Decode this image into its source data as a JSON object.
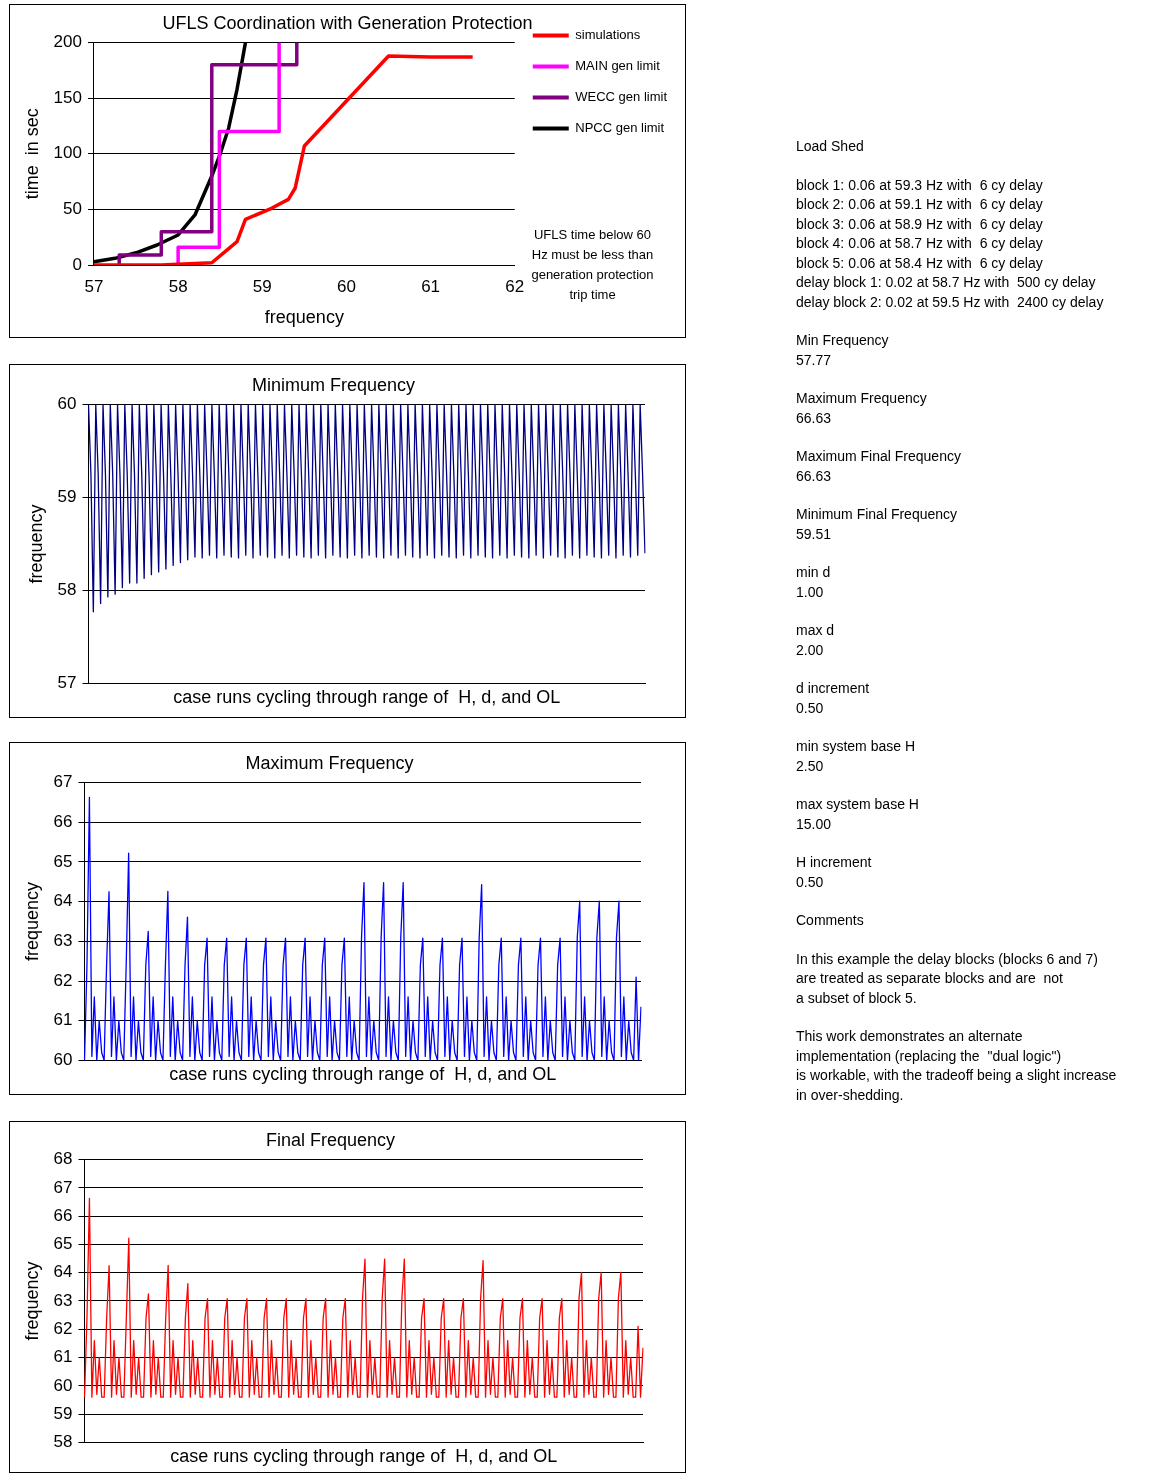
{
  "chart_data": [
    {
      "type": "line",
      "title": "UFLS Coordination with Generation Protection",
      "xlabel": "frequency",
      "ylabel": "time  in sec",
      "xlim": [
        57,
        62
      ],
      "xticks": [
        57,
        58,
        59,
        60,
        61,
        62
      ],
      "ylim": [
        0,
        200
      ],
      "yticks": [
        0,
        50,
        100,
        150,
        200
      ],
      "grid": "y",
      "legend": "right",
      "marker": "none",
      "line_style": "solid",
      "annotations": [
        "UFLS time below 60 Hz must be less than  generation protection trip time"
      ],
      "series": [
        {
          "name": "simulations",
          "color": "#ff0000",
          "x": [
            57,
            57.8,
            58.4,
            58.7,
            58.8,
            59.11,
            59.31,
            59.39,
            59.5,
            60.5,
            61,
            61.5
          ],
          "values": [
            0,
            0,
            2,
            21,
            41,
            51,
            59,
            69,
            107,
            188,
            187,
            187
          ]
        },
        {
          "name": "MAIN gen limit",
          "color": "#ff00ff",
          "x": [
            58,
            58,
            58.49,
            58.49,
            59.2,
            59.2
          ],
          "values": [
            0,
            16,
            16,
            120,
            120,
            200
          ]
        },
        {
          "name": "WECC gen limit",
          "color": "#800080",
          "x": [
            57.3,
            57.3,
            57.8,
            57.8,
            58.4,
            58.4,
            59.41,
            59.41
          ],
          "values": [
            0,
            9,
            9,
            30,
            30,
            180,
            180,
            200
          ]
        },
        {
          "name": "NPCC gen limit",
          "color": "#000000",
          "x": [
            57,
            57.25,
            57.5,
            57.75,
            58,
            58.2,
            58.4,
            58.5,
            58.6,
            58.7,
            58.8
          ],
          "values": [
            3,
            6,
            11,
            18,
            27,
            45,
            80,
            100,
            123,
            158,
            200
          ]
        }
      ]
    },
    {
      "type": "line",
      "title": "Minimum Frequency",
      "xlabel": "case runs cycling through range of  H, d, and OL",
      "ylabel": "frequency",
      "ylim": [
        57,
        60
      ],
      "yticks": [
        57,
        58,
        59,
        60
      ],
      "grid": "y",
      "tick_labels": "y",
      "marker": "none",
      "categories": [
        null,
        null,
        null,
        null,
        null,
        null,
        null,
        null,
        null,
        null,
        null,
        null,
        null,
        null,
        null,
        null,
        null,
        null,
        null,
        null,
        null,
        null,
        null,
        null,
        null,
        null,
        null,
        null,
        null,
        null,
        null,
        null,
        null,
        null,
        null,
        null,
        null,
        null,
        null,
        null,
        null,
        null,
        null,
        null,
        null,
        null,
        null,
        null,
        null,
        null,
        null,
        null,
        null,
        null,
        null,
        null,
        null,
        null,
        null,
        null,
        null,
        null,
        null,
        null,
        null,
        null,
        null,
        null,
        null,
        null,
        null,
        null,
        null,
        null,
        null,
        null,
        null,
        null,
        null,
        null,
        null,
        null,
        null,
        null,
        null,
        null,
        null,
        null,
        null,
        null,
        null,
        null,
        null,
        null,
        null,
        null,
        null,
        null,
        null,
        null,
        null,
        null,
        null,
        null,
        null,
        null,
        null,
        null,
        null,
        null,
        null,
        null,
        null,
        null,
        null,
        null,
        null,
        null,
        null,
        null,
        null,
        null,
        null,
        null,
        null,
        null,
        null,
        null,
        null,
        null,
        null,
        null,
        null,
        null,
        null,
        null,
        null,
        null,
        null,
        null,
        null,
        null,
        null,
        null,
        null,
        null,
        null,
        null,
        null,
        null,
        null,
        null,
        null,
        null,
        null,
        null,
        null,
        null,
        null,
        null,
        null,
        null,
        null,
        null,
        null,
        null,
        null,
        null,
        null,
        null,
        null,
        null,
        null,
        null,
        null,
        null,
        null,
        null,
        null,
        null,
        null,
        null,
        null,
        null,
        null,
        null,
        null,
        null,
        null,
        null,
        null,
        null,
        null,
        null,
        null,
        null,
        null,
        null,
        null,
        null,
        null,
        null,
        null,
        null,
        null,
        null,
        null,
        null,
        null,
        null,
        null,
        null,
        null,
        null,
        null,
        null,
        null,
        null,
        null,
        null,
        null,
        null,
        null,
        null,
        null,
        null,
        null,
        null,
        null,
        null,
        null
      ],
      "series": [
        {
          "color": "#000080",
          "values": [
            60,
            59.25,
            57.77,
            60,
            59.25,
            57.86,
            60,
            59.25,
            57.93,
            60,
            59.25,
            57.96,
            60,
            59.25,
            58.03,
            60,
            59.25,
            58.08,
            60,
            59.25,
            58.08,
            60,
            59.25,
            58.13,
            60,
            59.25,
            58.17,
            60,
            59.25,
            58.2,
            60,
            59.25,
            58.23,
            60,
            59.25,
            58.27,
            60,
            59.25,
            58.3,
            60,
            59.25,
            58.33,
            60,
            59.25,
            58.36,
            60,
            59.25,
            58.35,
            60,
            59.25,
            58.38,
            60,
            59.25,
            58.35,
            60,
            59.25,
            58.38,
            60,
            59.25,
            58.36,
            60,
            59.25,
            58.35,
            60,
            59.25,
            58.38,
            60,
            59.25,
            58.35,
            60,
            59.25,
            58.38,
            60,
            59.25,
            58.36,
            60,
            59.25,
            58.35,
            60,
            59.25,
            58.38,
            60,
            59.25,
            58.35,
            60,
            59.25,
            58.38,
            60,
            59.25,
            58.36,
            60,
            59.25,
            58.35,
            60,
            59.25,
            58.38,
            60,
            59.25,
            58.35,
            60,
            59.25,
            58.38,
            60,
            59.25,
            58.36,
            60,
            59.25,
            58.35,
            60,
            59.25,
            58.38,
            60,
            59.25,
            58.35,
            60,
            59.25,
            58.38,
            60,
            59.25,
            58.36,
            60,
            59.25,
            58.35,
            60,
            59.25,
            58.38,
            60,
            59.25,
            58.35,
            60,
            59.25,
            58.38,
            60,
            59.25,
            58.36,
            60,
            59.25,
            58.35,
            60,
            59.25,
            58.38,
            60,
            59.25,
            58.35,
            60,
            59.25,
            58.38,
            60,
            59.25,
            58.36,
            60,
            59.25,
            58.35,
            60,
            59.25,
            58.38,
            60,
            59.25,
            58.35,
            60,
            59.25,
            58.38,
            60,
            59.25,
            58.36,
            60,
            59.25,
            58.35,
            60,
            59.25,
            58.38,
            60,
            59.25,
            58.35,
            60,
            59.25,
            58.38,
            60,
            59.25,
            58.36,
            60,
            59.25,
            58.35,
            60,
            59.25,
            58.38,
            60,
            59.25,
            58.35,
            60,
            59.25,
            58.38,
            60,
            59.25,
            58.36,
            60,
            59.25,
            58.35,
            60,
            59.25,
            58.38,
            60,
            59.25,
            58.35,
            60,
            59.25,
            58.38,
            60,
            59.25,
            58.36,
            60,
            59.25,
            58.35,
            60,
            59.25,
            58.38,
            60,
            59.25,
            58.35,
            60,
            59.25,
            58.38,
            60,
            59.25,
            58.36,
            60,
            59.25,
            58.38,
            60,
            59.25,
            58.4
          ]
        }
      ]
    },
    {
      "type": "line",
      "title": "Maximum Frequency",
      "xlabel": "case runs cycling through range of  H, d, and OL",
      "ylabel": "frequency",
      "ylim": [
        60,
        67
      ],
      "yticks": [
        60,
        61,
        62,
        63,
        64,
        65,
        66,
        67
      ],
      "grid": "y",
      "tick_labels": "y",
      "marker": "none",
      "categories": [
        null,
        null,
        null,
        null,
        null,
        null,
        null,
        null,
        null,
        null,
        null,
        null,
        null,
        null,
        null,
        null,
        null,
        null,
        null,
        null,
        null,
        null,
        null,
        null,
        null,
        null,
        null,
        null,
        null,
        null,
        null,
        null,
        null,
        null,
        null,
        null,
        null,
        null,
        null,
        null,
        null,
        null,
        null,
        null,
        null,
        null,
        null,
        null,
        null,
        null,
        null,
        null,
        null,
        null,
        null,
        null,
        null,
        null,
        null,
        null,
        null,
        null,
        null,
        null,
        null,
        null,
        null,
        null,
        null,
        null,
        null,
        null,
        null,
        null,
        null,
        null,
        null,
        null,
        null,
        null,
        null,
        null,
        null,
        null,
        null,
        null,
        null,
        null,
        null,
        null,
        null,
        null,
        null,
        null,
        null,
        null,
        null,
        null,
        null,
        null,
        null,
        null,
        null,
        null,
        null,
        null,
        null,
        null,
        null,
        null,
        null,
        null,
        null,
        null,
        null,
        null,
        null,
        null,
        null,
        null,
        null,
        null,
        null,
        null,
        null,
        null,
        null,
        null,
        null,
        null,
        null,
        null,
        null,
        null,
        null,
        null,
        null,
        null,
        null,
        null,
        null,
        null,
        null,
        null,
        null,
        null,
        null,
        null,
        null,
        null,
        null,
        null,
        null,
        null,
        null,
        null,
        null,
        null,
        null,
        null,
        null,
        null,
        null,
        null,
        null,
        null,
        null,
        null,
        null,
        null,
        null,
        null,
        null,
        null,
        null,
        null,
        null,
        null,
        null,
        null,
        null,
        null,
        null,
        null,
        null,
        null,
        null,
        null,
        null,
        null,
        null,
        null,
        null,
        null,
        null,
        null,
        null,
        null,
        null,
        null,
        null,
        null,
        null,
        null,
        null,
        null,
        null,
        null,
        null,
        null,
        null,
        null,
        null,
        null,
        null,
        null,
        null,
        null,
        null,
        null,
        null,
        null,
        null,
        null,
        null,
        null,
        null,
        null
      ],
      "series": [
        {
          "color": "#0000ff",
          "values": [
            60,
            62.4,
            66.63,
            60.1,
            61.6,
            60,
            61,
            60.2,
            60,
            62.4,
            64.25,
            60.1,
            61.6,
            60,
            61,
            60.2,
            60,
            62.4,
            65.22,
            60.1,
            61.6,
            60,
            61,
            60.2,
            60,
            62.4,
            63.25,
            60.1,
            61.6,
            60,
            61,
            60.2,
            60,
            62.4,
            64.26,
            60.1,
            61.6,
            60,
            61,
            60.2,
            60,
            62.4,
            63.61,
            60.1,
            61.6,
            60,
            61,
            60.2,
            60,
            62.4,
            63.08,
            60.1,
            61.6,
            60,
            61,
            60.2,
            60,
            62.4,
            63.08,
            60.1,
            61.6,
            60,
            61,
            60.2,
            60,
            62.4,
            63.08,
            60.1,
            61.6,
            60,
            61,
            60.2,
            60,
            62.4,
            63.08,
            60.1,
            61.6,
            60,
            61,
            60.2,
            60,
            62.4,
            63.08,
            60.1,
            61.6,
            60,
            61,
            60.2,
            60,
            62.4,
            63.08,
            60.1,
            61.6,
            60,
            61,
            60.2,
            60,
            62.4,
            63.08,
            60.1,
            61.6,
            60,
            61,
            60.2,
            60,
            62.4,
            63.08,
            60.1,
            61.6,
            60,
            61,
            60.2,
            60,
            63.1,
            64.48,
            60.1,
            61.6,
            60,
            61,
            60.2,
            60,
            63.1,
            64.48,
            60.1,
            61.6,
            60,
            61,
            60.2,
            60,
            63.1,
            64.48,
            60.1,
            61.6,
            60,
            61,
            60.2,
            60,
            62.4,
            63.08,
            60.1,
            61.6,
            60,
            61,
            60.2,
            60,
            62.4,
            63.08,
            60.1,
            61.6,
            60,
            61,
            60.2,
            60,
            62.4,
            63.08,
            60.1,
            61.6,
            60,
            61,
            60.2,
            60,
            63.1,
            64.43,
            60.1,
            61.6,
            60,
            61,
            60.2,
            60,
            62.4,
            63.08,
            60.1,
            61.6,
            60,
            61,
            60.2,
            60,
            62.4,
            63.08,
            60.1,
            61.6,
            60,
            61,
            60.2,
            60,
            62.4,
            63.08,
            60.1,
            61.6,
            60,
            61,
            60.2,
            60,
            62.4,
            63.08,
            60.1,
            61.6,
            60,
            61,
            60.2,
            60,
            63.1,
            64.01,
            60.1,
            61.6,
            60,
            61,
            60.2,
            60,
            63.1,
            64.01,
            60.1,
            61.6,
            60,
            61,
            60.2,
            60,
            63.1,
            64.01,
            60.1,
            61.6,
            60,
            61,
            60.2,
            60,
            62.1,
            60,
            61.35
          ]
        }
      ]
    },
    {
      "type": "line",
      "title": "Final Frequency",
      "xlabel": "case runs cycling through range of  H, d, and OL",
      "ylabel": "frequency",
      "ylim": [
        58,
        68
      ],
      "yticks": [
        58,
        59,
        60,
        61,
        62,
        63,
        64,
        65,
        66,
        67,
        68
      ],
      "grid": "y",
      "tick_labels": "y",
      "marker": "none",
      "categories": [
        null,
        null,
        null,
        null,
        null,
        null,
        null,
        null,
        null,
        null,
        null,
        null,
        null,
        null,
        null,
        null,
        null,
        null,
        null,
        null,
        null,
        null,
        null,
        null,
        null,
        null,
        null,
        null,
        null,
        null,
        null,
        null,
        null,
        null,
        null,
        null,
        null,
        null,
        null,
        null,
        null,
        null,
        null,
        null,
        null,
        null,
        null,
        null,
        null,
        null,
        null,
        null,
        null,
        null,
        null,
        null,
        null,
        null,
        null,
        null,
        null,
        null,
        null,
        null,
        null,
        null,
        null,
        null,
        null,
        null,
        null,
        null,
        null,
        null,
        null,
        null,
        null,
        null,
        null,
        null,
        null,
        null,
        null,
        null,
        null,
        null,
        null,
        null,
        null,
        null,
        null,
        null,
        null,
        null,
        null,
        null,
        null,
        null,
        null,
        null,
        null,
        null,
        null,
        null,
        null,
        null,
        null,
        null,
        null,
        null,
        null,
        null,
        null,
        null,
        null,
        null,
        null,
        null,
        null,
        null,
        null,
        null,
        null,
        null,
        null,
        null,
        null,
        null,
        null,
        null,
        null,
        null,
        null,
        null,
        null,
        null,
        null,
        null,
        null,
        null,
        null,
        null,
        null,
        null,
        null,
        null,
        null,
        null,
        null,
        null,
        null,
        null,
        null,
        null,
        null,
        null,
        null,
        null,
        null,
        null,
        null,
        null,
        null,
        null,
        null,
        null,
        null,
        null,
        null,
        null,
        null,
        null,
        null,
        null,
        null,
        null,
        null,
        null,
        null,
        null,
        null,
        null,
        null,
        null,
        null,
        null,
        null,
        null,
        null,
        null,
        null,
        null,
        null,
        null,
        null,
        null,
        null,
        null,
        null,
        null,
        null,
        null,
        null,
        null,
        null,
        null,
        null,
        null,
        null,
        null,
        null,
        null,
        null,
        null,
        null,
        null,
        null,
        null,
        null,
        null,
        null,
        null,
        null,
        null,
        null,
        null,
        null,
        null
      ],
      "series": [
        {
          "color": "#ff0000",
          "values": [
            59.6,
            62.4,
            66.63,
            59.6,
            61.6,
            59.7,
            61,
            59.6,
            59.6,
            62.4,
            64.25,
            59.6,
            61.6,
            59.7,
            61,
            59.6,
            59.6,
            62.4,
            65.22,
            59.6,
            61.6,
            59.7,
            61,
            59.6,
            59.6,
            62.4,
            63.25,
            59.6,
            61.6,
            59.7,
            61,
            59.6,
            59.6,
            62.4,
            64.26,
            59.6,
            61.6,
            59.7,
            61,
            59.6,
            59.6,
            62.4,
            63.61,
            59.6,
            61.6,
            59.7,
            61,
            59.6,
            59.6,
            62.4,
            63.08,
            59.6,
            61.6,
            59.7,
            61,
            59.6,
            59.6,
            62.4,
            63.08,
            59.6,
            61.6,
            59.7,
            61,
            59.6,
            59.6,
            62.4,
            63.08,
            59.6,
            61.6,
            59.7,
            61,
            59.6,
            59.6,
            62.4,
            63.08,
            59.6,
            61.6,
            59.7,
            61,
            59.6,
            59.6,
            62.4,
            63.08,
            59.6,
            61.6,
            59.7,
            61,
            59.6,
            59.6,
            62.4,
            63.08,
            59.6,
            61.6,
            59.7,
            61,
            59.6,
            59.6,
            62.4,
            63.08,
            59.6,
            61.6,
            59.7,
            61,
            59.6,
            59.6,
            62.4,
            63.08,
            59.6,
            61.6,
            59.7,
            61,
            59.6,
            59.6,
            63.1,
            64.48,
            59.6,
            61.6,
            59.7,
            61,
            59.6,
            59.6,
            63.1,
            64.48,
            59.6,
            61.6,
            59.7,
            61,
            59.6,
            59.6,
            63.1,
            64.48,
            59.6,
            61.6,
            59.7,
            61,
            59.6,
            59.6,
            62.4,
            63.08,
            59.6,
            61.6,
            59.7,
            61,
            59.6,
            59.6,
            62.4,
            63.08,
            59.6,
            61.6,
            59.7,
            61,
            59.6,
            59.6,
            62.4,
            63.08,
            59.6,
            61.6,
            59.7,
            61,
            59.6,
            59.6,
            63.1,
            64.43,
            59.6,
            61.6,
            59.7,
            61,
            59.6,
            59.6,
            62.4,
            63.08,
            59.6,
            61.6,
            59.7,
            61,
            59.6,
            59.6,
            62.4,
            63.08,
            59.6,
            61.6,
            59.7,
            61,
            59.6,
            59.6,
            62.4,
            63.08,
            59.6,
            61.6,
            59.7,
            61,
            59.6,
            59.6,
            62.4,
            63.08,
            59.6,
            61.6,
            59.7,
            61,
            59.6,
            59.6,
            63.1,
            64.01,
            59.6,
            61.6,
            59.7,
            61,
            59.6,
            59.6,
            63.1,
            64.01,
            59.6,
            61.6,
            59.7,
            61,
            59.6,
            59.6,
            63.1,
            64.01,
            59.6,
            61.6,
            59.7,
            61,
            59.6,
            59.6,
            62.1,
            59.6,
            61.35
          ]
        }
      ]
    },
    {
      "type": "other",
      "annotations": [
        "Load Shed",
        "block 1: 0.06 at 59.3 Hz with  6 cy delay\nblock 2: 0.06 at 59.1 Hz with  6 cy delay\nblock 3: 0.06 at 58.9 Hz with  6 cy delay\nblock 4: 0.06 at 58.7 Hz with  6 cy delay\nblock 5: 0.06 at 58.4 Hz with  6 cy delay\ndelay block 1: 0.02 at 58.7 Hz with  500 cy delay\ndelay block 2: 0.02 at 59.5 Hz with  2400 cy delay",
        "Min Frequency\n57.77",
        "Maximum Frequency\n66.63",
        "Maximum Final Frequency\n66.63",
        "Minimum Final Frequency\n59.51",
        "min d\n1.00",
        "max d\n2.00",
        "d increment\n0.50",
        "min system base H\n2.50",
        "max system base H\n15.00",
        "H increment\n0.50",
        "Comments",
        "In this example the delay blocks (blocks 6 and 7)\nare treated as separate blocks and are  not\na subset of block 5.",
        "This work demonstrates an alternate\nimplementation (replacing the  \"dual logic\")\nis workable, with the tradeoff being a slight increase\nin over-shedding."
      ]
    }
  ]
}
